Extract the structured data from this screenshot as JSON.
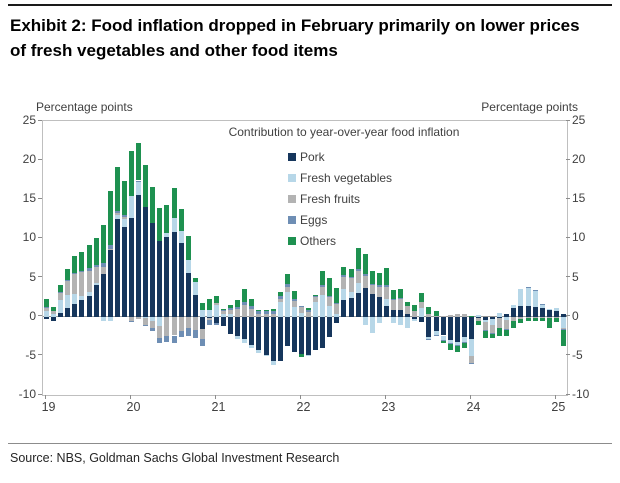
{
  "title": "Exhibit 2: Food inflation dropped in February primarily on lower prices of fresh vegetables and other food items",
  "axis": {
    "left_label": "Percentage points",
    "right_label": "Percentage points"
  },
  "source": "Source: NBS, Goldman Sachs Global Investment Research",
  "colors": {
    "pork": "#16365c",
    "fresh_vegetables": "#b7d7e8",
    "fresh_fruits": "#b3b3b3",
    "eggs": "#6e8eb4",
    "others": "#1e9150",
    "axis_line": "#bfbfbf",
    "zero_line": "#999999",
    "text": "#404040"
  },
  "chart_data": {
    "type": "bar",
    "stacked": true,
    "title": "Contribution to year-over-year food inflation",
    "ylabel": "Percentage points",
    "ylim": [
      -10,
      25
    ],
    "ytick_step": 5,
    "grid": false,
    "legend_position": "top-center-inside",
    "x_year_labels": [
      "19",
      "20",
      "21",
      "22",
      "23",
      "24",
      "25"
    ],
    "categories": [
      "2019-01",
      "2019-02",
      "2019-03",
      "2019-04",
      "2019-05",
      "2019-06",
      "2019-07",
      "2019-08",
      "2019-09",
      "2019-10",
      "2019-11",
      "2019-12",
      "2020-01",
      "2020-02",
      "2020-03",
      "2020-04",
      "2020-05",
      "2020-06",
      "2020-07",
      "2020-08",
      "2020-09",
      "2020-10",
      "2020-11",
      "2020-12",
      "2021-01",
      "2021-02",
      "2021-03",
      "2021-04",
      "2021-05",
      "2021-06",
      "2021-07",
      "2021-08",
      "2021-09",
      "2021-10",
      "2021-11",
      "2021-12",
      "2022-01",
      "2022-02",
      "2022-03",
      "2022-04",
      "2022-05",
      "2022-06",
      "2022-07",
      "2022-08",
      "2022-09",
      "2022-10",
      "2022-11",
      "2022-12",
      "2023-01",
      "2023-02",
      "2023-03",
      "2023-04",
      "2023-05",
      "2023-06",
      "2023-07",
      "2023-08",
      "2023-09",
      "2023-10",
      "2023-11",
      "2023-12",
      "2024-01",
      "2024-02",
      "2024-03",
      "2024-04",
      "2024-05",
      "2024-06",
      "2024-07",
      "2024-08",
      "2024-09",
      "2024-10",
      "2024-11",
      "2024-12",
      "2025-01",
      "2025-02"
    ],
    "series": [
      {
        "name": "Pork",
        "color": "#16365c",
        "values": [
          -0.3,
          -0.5,
          0.5,
          1.1,
          1.6,
          2.1,
          2.7,
          4.0,
          5.5,
          8.5,
          12.5,
          11.5,
          12.6,
          15.5,
          14.0,
          12.0,
          9.7,
          10.2,
          10.8,
          9.4,
          5.6,
          2.8,
          -1.6,
          -0.2,
          -0.8,
          -1.2,
          -2.2,
          -2.5,
          -2.9,
          -3.6,
          -4.3,
          -4.9,
          -5.6,
          -5.6,
          -3.8,
          -4.5,
          -4.8,
          -4.9,
          -4.3,
          -4.0,
          -2.6,
          -0.8,
          2.1,
          2.4,
          3.0,
          3.7,
          2.9,
          2.5,
          1.4,
          0.9,
          0.9,
          0.4,
          -0.3,
          -0.7,
          -2.6,
          -1.8,
          -2.4,
          -3.0,
          -3.2,
          -2.6,
          -2.9,
          -0.1,
          -0.4,
          -0.3,
          -0.1,
          0.4,
          1.1,
          1.4,
          1.4,
          1.3,
          1.1,
          0.9,
          0.7,
          0.4
        ]
      },
      {
        "name": "Fresh vegetables",
        "color": "#b7d7e8",
        "values": [
          0.7,
          0.3,
          1.6,
          1.7,
          1.3,
          0.5,
          0.4,
          0.3,
          -0.5,
          -0.5,
          0.5,
          1.0,
          2.8,
          1.8,
          -0.1,
          -0.5,
          -1.2,
          0.5,
          1.8,
          1.5,
          1.7,
          1.6,
          0.8,
          0.9,
          1.5,
          0.4,
          0.3,
          -0.3,
          -0.4,
          -0.4,
          -0.3,
          -0.1,
          -0.6,
          1.9,
          3.2,
          1.3,
          0.5,
          -0.1,
          1.9,
          2.8,
          1.4,
          0.4,
          1.5,
          0.7,
          1.3,
          -1.0,
          -2.1,
          -0.8,
          0.8,
          -0.8,
          -1.1,
          -1.5,
          -0.2,
          1.1,
          -0.2,
          -0.5,
          -0.6,
          -0.4,
          -0.4,
          -0.6,
          -2.1,
          0.2,
          -0.3,
          -0.7,
          0.5,
          -0.4,
          0.4,
          2.2,
          2.3,
          2.0,
          0.4,
          0.1,
          0.4,
          -1.4
        ]
      },
      {
        "name": "Fresh fruits",
        "color": "#b3b3b3",
        "values": [
          0.5,
          0.4,
          0.9,
          1.8,
          2.5,
          3.1,
          2.8,
          2.0,
          0.9,
          0.2,
          0.2,
          0.3,
          -0.5,
          -0.3,
          -0.9,
          -1.0,
          -1.5,
          -2.5,
          -2.4,
          -1.8,
          -1.5,
          -1.7,
          -1.2,
          -0.2,
          0.2,
          0.3,
          0.6,
          1.0,
          1.5,
          1.0,
          0.4,
          0.3,
          0.3,
          0.4,
          0.6,
          0.7,
          0.7,
          0.6,
          0.6,
          1.0,
          1.1,
          1.2,
          1.5,
          1.8,
          1.6,
          1.5,
          1.1,
          1.3,
          1.6,
          1.2,
          1.4,
          1.0,
          0.7,
          0.8,
          0.4,
          0.1,
          0.1,
          0.2,
          0.3,
          0.3,
          -0.9,
          -0.4,
          -1.0,
          -1.1,
          -1.3,
          -1.2,
          -0.6,
          -0.3,
          -0.2,
          -0.2,
          -0.2,
          -0.1,
          -0.1,
          -0.2
        ]
      },
      {
        "name": "Eggs",
        "color": "#6e8eb4",
        "values": [
          0.1,
          0.0,
          0.1,
          0.1,
          0.2,
          0.2,
          0.3,
          0.3,
          0.4,
          0.4,
          0.3,
          0.2,
          -0.1,
          0.1,
          -0.1,
          -0.3,
          -0.6,
          -0.7,
          -0.9,
          -0.8,
          -0.9,
          -1.0,
          -0.9,
          -0.6,
          -0.3,
          0.1,
          0.2,
          0.3,
          0.4,
          0.4,
          0.4,
          0.4,
          0.4,
          0.4,
          0.4,
          0.3,
          0.2,
          0.2,
          0.2,
          0.2,
          0.2,
          0.2,
          0.2,
          0.2,
          0.2,
          0.3,
          0.2,
          0.2,
          0.2,
          0.1,
          0.1,
          0.0,
          0.0,
          0.0,
          -0.1,
          -0.1,
          -0.1,
          -0.1,
          -0.1,
          -0.1,
          -0.1,
          -0.1,
          -0.1,
          -0.1,
          -0.1,
          -0.1,
          0.0,
          0.0,
          0.1,
          0.1,
          0.1,
          0.0,
          0.0,
          -0.1
        ]
      },
      {
        "name": "Others",
        "color": "#1e9150",
        "values": [
          0.9,
          0.5,
          1.0,
          1.4,
          2.1,
          2.4,
          2.9,
          3.4,
          4.9,
          6.9,
          5.6,
          4.4,
          5.8,
          4.8,
          5.4,
          4.6,
          4.2,
          3.6,
          3.9,
          2.9,
          3.0,
          0.5,
          0.9,
          1.3,
          1.0,
          0.2,
          0.4,
          0.8,
          1.7,
          0.9,
          0.1,
          0.2,
          0.3,
          0.5,
          1.2,
          1.0,
          -0.4,
          0.3,
          0.1,
          1.9,
          2.2,
          1.9,
          1.0,
          1.0,
          2.7,
          2.5,
          1.6,
          1.6,
          2.2,
          1.2,
          1.1,
          0.5,
          0.8,
          1.1,
          0.8,
          0.6,
          -0.2,
          -0.7,
          -0.8,
          -0.7,
          0.1,
          -0.5,
          -0.9,
          -0.5,
          -1.0,
          -0.8,
          -0.9,
          -0.5,
          -0.3,
          -0.3,
          -0.4,
          -1.4,
          -0.6,
          -2.0
        ]
      }
    ],
    "totals_yoy": [
      1.9,
      0.7,
      4.1,
      6.1,
      7.7,
      8.3,
      9.1,
      10.0,
      11.2,
      15.5,
      19.1,
      17.4,
      20.6,
      21.9,
      18.3,
      14.8,
      10.6,
      11.1,
      13.2,
      11.2,
      7.9,
      2.2,
      -2.0,
      1.2,
      1.6,
      -0.2,
      -0.7,
      -0.7,
      0.3,
      -1.7,
      -3.7,
      -4.1,
      -5.2,
      -2.4,
      1.6,
      -1.2,
      -3.8,
      -3.9,
      -1.5,
      1.9,
      2.3,
      2.9,
      6.3,
      6.1,
      8.8,
      7.0,
      3.7,
      4.8,
      6.2,
      2.6,
      2.4,
      0.4,
      1.0,
      2.3,
      -1.7,
      -1.7,
      -3.2,
      -4.0,
      -4.2,
      -3.7,
      -5.9,
      -0.9,
      -2.7,
      -2.7,
      -2.0,
      -2.1,
      0.0,
      2.8,
      3.3,
      2.9,
      1.0,
      -0.5,
      0.4,
      -3.3
    ]
  }
}
